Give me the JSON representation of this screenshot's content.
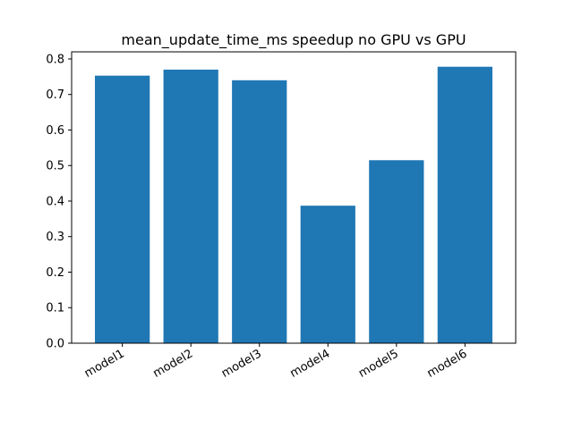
{
  "chart_data": {
    "type": "bar",
    "title": "mean_update_time_ms speedup no GPU vs GPU",
    "xlabel": "",
    "ylabel": "",
    "categories": [
      "model1",
      "model2",
      "model3",
      "model4",
      "model5",
      "model6"
    ],
    "values": [
      0.753,
      0.77,
      0.74,
      0.387,
      0.515,
      0.778
    ],
    "ylim": [
      0,
      0.82
    ],
    "yticks": [
      "0.0",
      "0.1",
      "0.2",
      "0.3",
      "0.4",
      "0.5",
      "0.6",
      "0.7",
      "0.8"
    ],
    "bar_color": "#1f77b4",
    "grid": false,
    "legend": "none"
  }
}
